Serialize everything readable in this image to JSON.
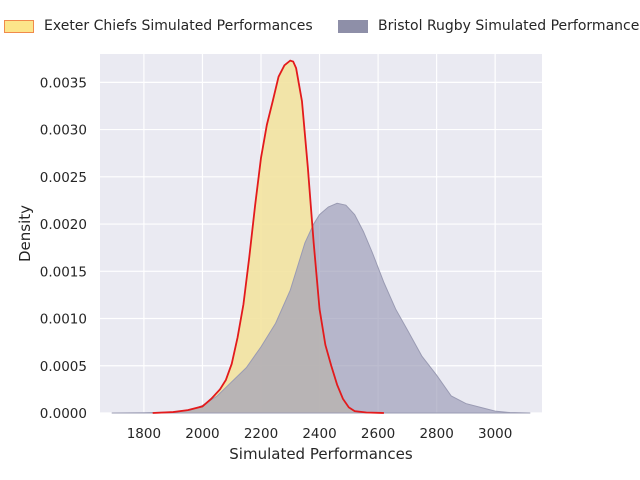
{
  "chart_data": {
    "type": "area",
    "title": "",
    "xlabel": "Simulated Performances",
    "ylabel": "Density",
    "xlim": [
      1650,
      3160
    ],
    "ylim": [
      0,
      0.0038
    ],
    "x_ticks": [
      "1800",
      "2000",
      "2200",
      "2400",
      "2600",
      "2800",
      "3000"
    ],
    "y_ticks": [
      "0.0000",
      "0.0005",
      "0.0010",
      "0.0015",
      "0.0020",
      "0.0025",
      "0.0030",
      "0.0035"
    ],
    "grid": true,
    "legend_position": "top",
    "series": [
      {
        "name": "Exeter Chiefs Simulated Performances",
        "fill": "#f3e3a0",
        "line": "#e31a1c",
        "points": [
          [
            1830,
            0.0
          ],
          [
            1900,
            1e-05
          ],
          [
            1950,
            3e-05
          ],
          [
            2000,
            7e-05
          ],
          [
            2030,
            0.00015
          ],
          [
            2060,
            0.00025
          ],
          [
            2080,
            0.00035
          ],
          [
            2100,
            0.00052
          ],
          [
            2120,
            0.0008
          ],
          [
            2140,
            0.00115
          ],
          [
            2160,
            0.00165
          ],
          [
            2180,
            0.0022
          ],
          [
            2200,
            0.0027
          ],
          [
            2220,
            0.00305
          ],
          [
            2240,
            0.0033
          ],
          [
            2260,
            0.00356
          ],
          [
            2280,
            0.00368
          ],
          [
            2300,
            0.00373
          ],
          [
            2310,
            0.00372
          ],
          [
            2320,
            0.00365
          ],
          [
            2340,
            0.0033
          ],
          [
            2360,
            0.0026
          ],
          [
            2380,
            0.0018
          ],
          [
            2400,
            0.0011
          ],
          [
            2420,
            0.00072
          ],
          [
            2440,
            0.0005
          ],
          [
            2460,
            0.0003
          ],
          [
            2480,
            0.00015
          ],
          [
            2500,
            6e-05
          ],
          [
            2520,
            2e-05
          ],
          [
            2560,
            5e-06
          ],
          [
            2620,
            0.0
          ]
        ]
      },
      {
        "name": "Bristol Rugby Simulated Performances",
        "fill": "#9fa0bb",
        "line": "#9a9bb3",
        "points": [
          [
            1690,
            0.0
          ],
          [
            1800,
            3e-06
          ],
          [
            1900,
            1e-05
          ],
          [
            1960,
            3e-05
          ],
          [
            2000,
            8e-05
          ],
          [
            2050,
            0.00018
          ],
          [
            2100,
            0.00033
          ],
          [
            2150,
            0.00048
          ],
          [
            2200,
            0.0007
          ],
          [
            2250,
            0.00095
          ],
          [
            2300,
            0.0013
          ],
          [
            2350,
            0.0018
          ],
          [
            2380,
            0.002
          ],
          [
            2400,
            0.0021
          ],
          [
            2430,
            0.00218
          ],
          [
            2460,
            0.00222
          ],
          [
            2490,
            0.0022
          ],
          [
            2520,
            0.0021
          ],
          [
            2550,
            0.00192
          ],
          [
            2580,
            0.0017
          ],
          [
            2620,
            0.00138
          ],
          [
            2660,
            0.0011
          ],
          [
            2700,
            0.00088
          ],
          [
            2750,
            0.0006
          ],
          [
            2800,
            0.0004
          ],
          [
            2850,
            0.00018
          ],
          [
            2900,
            0.0001
          ],
          [
            2950,
            6e-05
          ],
          [
            3000,
            2e-05
          ],
          [
            3050,
            5e-06
          ],
          [
            3120,
            0.0
          ]
        ]
      }
    ]
  }
}
